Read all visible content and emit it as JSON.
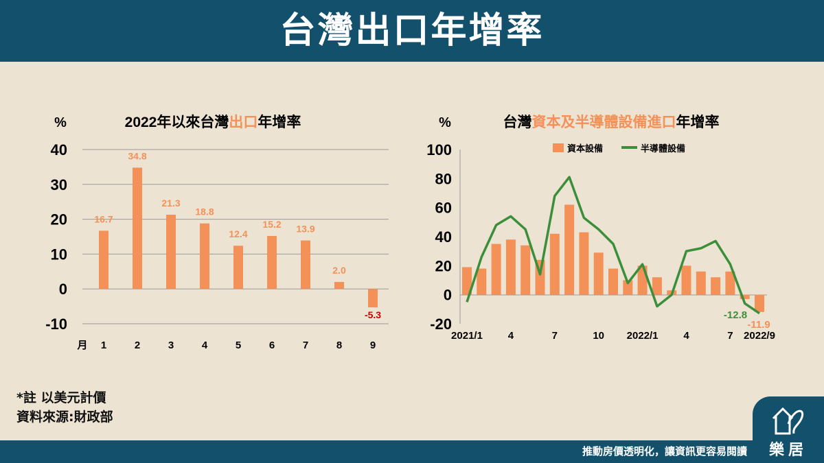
{
  "page": {
    "title": "台灣出口年增率",
    "footer_slogan": "推動房價透明化，讓資訊更容易閱讀",
    "logo_text": "樂居",
    "notes": [
      "*註 以美元計價",
      "資料來源:財政部"
    ]
  },
  "colors": {
    "header_bg": "#13506c",
    "background": "#ede3d3",
    "bar": "#f39158",
    "line": "#3c8f3a",
    "negative_label": "#cc0000",
    "highlight_text": "#f39158"
  },
  "chart_data": [
    {
      "type": "bar",
      "title_parts": [
        {
          "text": "2022年以來台灣",
          "highlight": false
        },
        {
          "text": "出口",
          "highlight": true
        },
        {
          "text": "年增率",
          "highlight": false
        }
      ],
      "ylabel": "%",
      "xlabel": "月",
      "categories": [
        "1",
        "2",
        "3",
        "4",
        "5",
        "6",
        "7",
        "8",
        "9"
      ],
      "values": [
        16.7,
        34.8,
        21.3,
        18.8,
        12.4,
        15.2,
        13.9,
        2.0,
        -5.3
      ],
      "value_labels": [
        "16.7",
        "34.8",
        "21.3",
        "18.8",
        "12.4",
        "15.2",
        "13.9",
        "2.0",
        "-5.3"
      ],
      "ylim": [
        -10,
        40
      ],
      "yticks": [
        "40",
        "30",
        "20",
        "10",
        "0",
        "-10"
      ],
      "grid": true
    },
    {
      "type": "bar+line",
      "title_parts": [
        {
          "text": "台灣",
          "highlight": false
        },
        {
          "text": "資本及半導體設備進口",
          "highlight": true
        },
        {
          "text": "年增率",
          "highlight": false
        }
      ],
      "ylabel": "%",
      "legend": [
        "資本設備",
        "半導體設備"
      ],
      "legend_position": "top",
      "x_tick_labels": [
        {
          "index": 0,
          "label": "2021/1"
        },
        {
          "index": 3,
          "label": "4"
        },
        {
          "index": 6,
          "label": "7"
        },
        {
          "index": 9,
          "label": "10"
        },
        {
          "index": 12,
          "label": "2022/1"
        },
        {
          "index": 15,
          "label": "4"
        },
        {
          "index": 18,
          "label": "7"
        },
        {
          "index": 20,
          "label": "2022/9"
        }
      ],
      "ylim": [
        -20,
        100
      ],
      "yticks": [
        "100",
        "80",
        "60",
        "40",
        "20",
        "0",
        "-20"
      ],
      "series": [
        {
          "name": "資本設備",
          "kind": "bar",
          "values": [
            19,
            18,
            35,
            38,
            34,
            24,
            42,
            62,
            43,
            29,
            18,
            10,
            20,
            12,
            3,
            20,
            16,
            12,
            16,
            -3,
            -11.9
          ]
        },
        {
          "name": "半導體設備",
          "kind": "line",
          "values": [
            -5,
            26,
            48,
            54,
            45,
            14,
            68,
            81,
            53,
            45,
            35,
            8,
            21,
            -8,
            0,
            30,
            32,
            37,
            21,
            -6,
            -12.8
          ]
        }
      ],
      "value_labels": [
        "-12.8",
        "-11.9"
      ]
    }
  ]
}
